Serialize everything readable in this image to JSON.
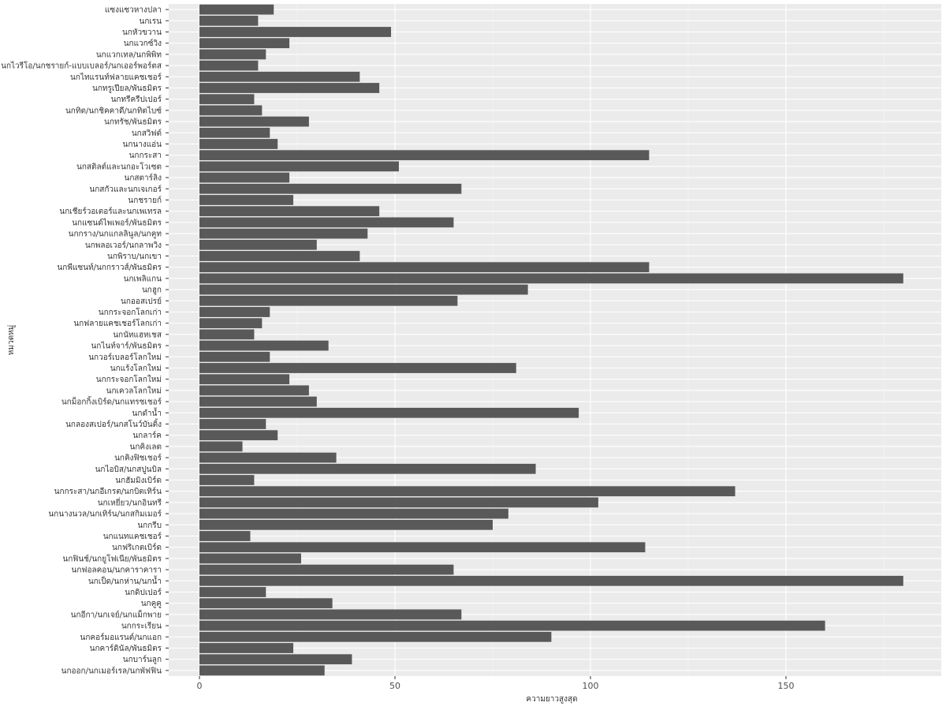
{
  "chart_data": {
    "type": "bar",
    "orientation": "horizontal",
    "xlabel": "ความยาวสูงสุด",
    "ylabel": "หมวดหมู่",
    "xlim": [
      -8,
      188
    ],
    "xticks": [
      0,
      50,
      100,
      150
    ],
    "grid": true,
    "colors": {
      "bar": "#595959",
      "panel": "#ebebeb",
      "grid_major": "#ffffff",
      "grid_minor": "#f5f5f5"
    },
    "categories": [
      "แซงแซวหางปลา",
      "นกเรน",
      "นกหัวขวาน",
      "นกแวกซ์วิง",
      "นกแวกเทล/นกพิพิท",
      "นกไวรีโอ/นกชรายก์-แบบเบลอร์/นกเออร์พอร์ตส",
      "นกไทแรนท์ฟลายแคชเชอร์",
      "นกทรูเปียล/พันธมิตร",
      "นกทรีครีปเปอร์",
      "นกทิต/นกชิคคาดี/นกทิตไบซ์",
      "นกทรัช/พันธมิตร",
      "นกสวิฟต์",
      "นกนางแอ่น",
      "นกกระสา",
      "นกสติลต์และนกอะโวเซต",
      "นกสตาร์ลิง",
      "นกสกัวและนกเจเกอร์",
      "นกชรายก์",
      "นกเชียร์วอเตอร์และนกเพเทรล",
      "นกแซนด์ไพเพอร์/พันธมิตร",
      "นกกราง/นกแกลลินูล/นกคูท",
      "นกพลอเวอร์/นกลาพวิง",
      "นกพิราบ/นกเขา",
      "นกพีแซนท์/นกกราวส์/พันธมิตร",
      "นกเพลิแกน",
      "นกฮูก",
      "นกออสเปรย์",
      "นกกระจอกโลกเก่า",
      "นกฟลายแคชเชอร์โลกเก่า",
      "นกนัทแฮทเชส",
      "นกไนท์จาร์/พันธมิตร",
      "นกวอร์เบลอร์โลกใหม่",
      "นกแร้งโลกใหม่",
      "นกกระจอกโลกใหม่",
      "นกเควลโลกใหม่",
      "นกม็อกกิ้งเบิร์ด/นกแทรชเชอร์",
      "นกดำน้ำ",
      "นกลองสเปอร์/นกสโนว์บันติ้ง",
      "นกลาร์ค",
      "นกคิงเลต",
      "นกคิงฟิชเชอร์",
      "นกไอบิส/นกสปูนบิล",
      "นกฮัมมิงเบิร์ด",
      "นกกระสา/นกอีเกรต/นกบิตเทิร์น",
      "นกเหยี่ยว/นกอินทรี",
      "นกนางนวล/นกเทิร์น/นกสกิมเมอร์",
      "นกกรีบ",
      "นกแนทแคชเชอร์",
      "นกฟริเกตเบิร์ด",
      "นกฟินช์/นกยูโฟเนีย/พันธมิตร",
      "นกฟอลคอน/นกคาราคารา",
      "นกเป็ด/นกห่าน/นกน้ำ",
      "นกดิปเปอร์",
      "นกคูคู",
      "นกอีกา/นกเจย์/นกแม็กพาย",
      "นกกระเรียน",
      "นกคอร์มอแรนต์/นกแอก",
      "นกคาร์ดินัล/พันธมิตร",
      "นกบาร์นลูก",
      "นกออก/นกเมอร์เรล/นกพัฟฟิน"
    ],
    "values": [
      19,
      15,
      49,
      23,
      17,
      15,
      41,
      46,
      14,
      16,
      28,
      18,
      20,
      115,
      51,
      23,
      67,
      24,
      46,
      65,
      43,
      30,
      41,
      115,
      180,
      84,
      66,
      18,
      16,
      14,
      33,
      18,
      81,
      23,
      28,
      30,
      97,
      17,
      20,
      11,
      35,
      86,
      14,
      137,
      102,
      79,
      75,
      13,
      114,
      26,
      65,
      180,
      17,
      34,
      67,
      160,
      90,
      24,
      39,
      32
    ]
  }
}
